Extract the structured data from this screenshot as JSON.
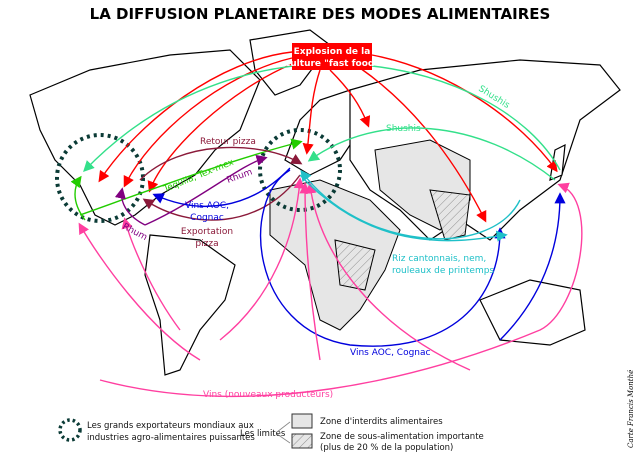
{
  "title": "LA DIFFUSION PLANETAIRE DES MODES ALIMENTAIRES",
  "labels": {
    "fast_food_line1": "Explosion de la",
    "fast_food_line2": "culture \"fast food\"",
    "shushis_1": "Shushis",
    "shushis_2": "Shushis",
    "retour_pizza": "Retour pizza",
    "tequila": "Tequila, Tex-mex",
    "rhum_1": "Rhum",
    "rhum_2": "Rhum",
    "vins_aoc_1_line1": "Vins AOC,",
    "vins_aoc_1_line2": "Cognac",
    "export_pizza_line1": "Exportation",
    "export_pizza_line2": "pizza",
    "riz_line1": "Riz cantonnais, nem,",
    "riz_line2": "rouleaux de printemps",
    "vins_aoc_2": "Vins AOC, Cognac",
    "vins_nouveaux": "Vins (nouveaux producteurs)"
  },
  "legend": {
    "exporters_line1": "Les grands exportateurs mondiaux aux",
    "exporters_line2": "industries agro-alimentaires puissantes",
    "limits": "Les limites",
    "forbidden_zone": "Zone d'interdits alimentaires",
    "undernourishment_line1": "Zone de sous-alimentation importante",
    "undernourishment_line2": "(plus de 20 % de la population)"
  },
  "signature": "Carte Francis Monthé",
  "colors": {
    "fast_food": "#ff0000",
    "shushis": "#33e08a",
    "tequila": "#22cc00",
    "vins_aoc": "#0000dd",
    "vins_nouveaux": "#ff3fa0",
    "rhum": "#800080",
    "pizza": "#8b1a3a",
    "riz": "#1fc0c8",
    "exporters": "#0b3b36",
    "forbidden_zone_fill": "#e6e6e6"
  }
}
